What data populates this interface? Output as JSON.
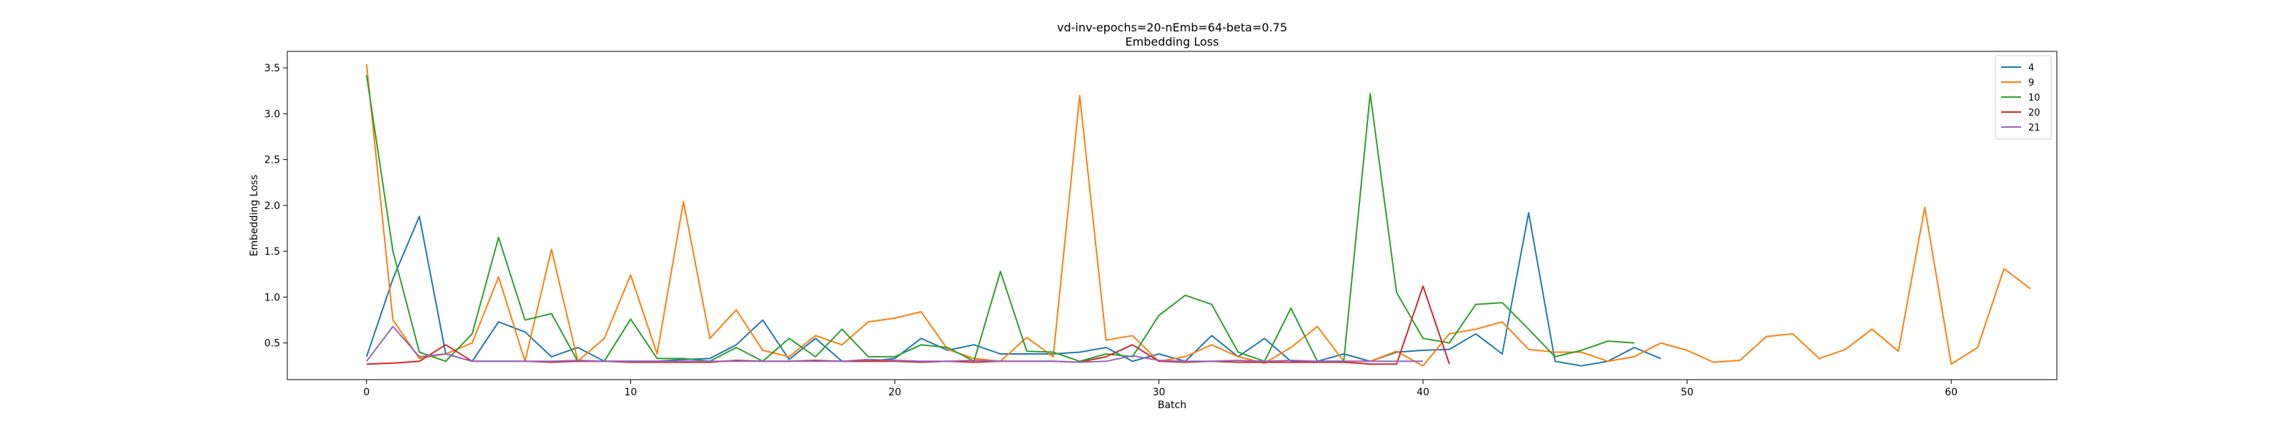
{
  "chart_data": {
    "type": "line",
    "title": "vd-inv-epochs=20-nEmb=64-beta=0.75",
    "subtitle": "Embedding Loss",
    "xlabel": "Batch",
    "ylabel": "Embedding Loss",
    "xlim": [
      -3,
      64
    ],
    "ylim": [
      0.1,
      3.68
    ],
    "xticks": [
      0,
      10,
      20,
      30,
      40,
      50,
      60
    ],
    "xtick_labels": [
      "0",
      "10",
      "20",
      "30",
      "40",
      "50",
      "60"
    ],
    "yticks": [
      0.5,
      1.0,
      1.5,
      2.0,
      2.5,
      3.0,
      3.5
    ],
    "ytick_labels": [
      "0.5",
      "1.0",
      "1.5",
      "2.0",
      "2.5",
      "3.0",
      "3.5"
    ],
    "grid": false,
    "legend_position": "top-right",
    "series": [
      {
        "name": "4",
        "color": "#1f77b4",
        "values": [
          0.35,
          1.2,
          1.88,
          0.38,
          0.3,
          0.73,
          0.62,
          0.35,
          0.45,
          0.3,
          0.3,
          0.3,
          0.32,
          0.33,
          0.48,
          0.75,
          0.32,
          0.55,
          0.3,
          0.3,
          0.33,
          0.55,
          0.42,
          0.48,
          0.38,
          0.38,
          0.38,
          0.4,
          0.45,
          0.3,
          0.38,
          0.3,
          0.58,
          0.35,
          0.55,
          0.3,
          0.3,
          0.38,
          0.3,
          0.4,
          0.42,
          0.43,
          0.6,
          0.38,
          1.92,
          0.3,
          0.25,
          0.3,
          0.45,
          0.33
        ]
      },
      {
        "name": "9",
        "color": "#ff7f0e",
        "values": [
          3.54,
          0.75,
          0.33,
          0.38,
          0.5,
          1.22,
          0.3,
          1.52,
          0.3,
          0.55,
          1.24,
          0.38,
          2.04,
          0.55,
          0.86,
          0.42,
          0.35,
          0.58,
          0.48,
          0.73,
          0.77,
          0.84,
          0.43,
          0.33,
          0.3,
          0.56,
          0.35,
          3.2,
          0.53,
          0.58,
          0.3,
          0.35,
          0.48,
          0.35,
          0.28,
          0.45,
          0.68,
          0.3,
          0.3,
          0.41,
          0.25,
          0.6,
          0.65,
          0.73,
          0.43,
          0.4,
          0.4,
          0.3,
          0.35,
          0.5,
          0.42,
          0.29,
          0.31,
          0.57,
          0.6,
          0.33,
          0.43,
          0.65,
          0.41,
          1.98,
          0.27,
          0.45,
          1.31,
          1.09
        ]
      },
      {
        "name": "10",
        "color": "#2ca02c",
        "values": [
          3.42,
          1.5,
          0.4,
          0.3,
          0.6,
          1.65,
          0.75,
          0.82,
          0.3,
          0.3,
          0.76,
          0.33,
          0.33,
          0.3,
          0.45,
          0.3,
          0.55,
          0.35,
          0.65,
          0.35,
          0.35,
          0.48,
          0.45,
          0.3,
          1.28,
          0.41,
          0.4,
          0.3,
          0.38,
          0.35,
          0.8,
          1.02,
          0.92,
          0.4,
          0.3,
          0.88,
          0.3,
          0.3,
          3.22,
          1.05,
          0.55,
          0.5,
          0.92,
          0.94,
          0.65,
          0.35,
          0.42,
          0.52,
          0.5
        ]
      },
      {
        "name": "20",
        "color": "#d62728",
        "values": [
          0.27,
          0.28,
          0.3,
          0.48,
          0.3,
          0.3,
          0.3,
          0.29,
          0.3,
          0.3,
          0.29,
          0.29,
          0.29,
          0.29,
          0.31,
          0.3,
          0.3,
          0.31,
          0.3,
          0.3,
          0.3,
          0.29,
          0.3,
          0.29,
          0.3,
          0.3,
          0.3,
          0.29,
          0.35,
          0.48,
          0.3,
          0.29,
          0.3,
          0.29,
          0.29,
          0.29,
          0.29,
          0.29,
          0.27,
          0.27,
          1.12,
          0.27
        ]
      },
      {
        "name": "21",
        "color": "#9467bd",
        "values": [
          0.3,
          0.68,
          0.35,
          0.38,
          0.3,
          0.3,
          0.3,
          0.3,
          0.31,
          0.3,
          0.3,
          0.3,
          0.3,
          0.3,
          0.3,
          0.3,
          0.3,
          0.3,
          0.3,
          0.32,
          0.31,
          0.3,
          0.3,
          0.31,
          0.3,
          0.3,
          0.3,
          0.29,
          0.3,
          0.36,
          0.31,
          0.3,
          0.3,
          0.31,
          0.3,
          0.31,
          0.3,
          0.3,
          0.3,
          0.3,
          0.3
        ]
      }
    ]
  }
}
